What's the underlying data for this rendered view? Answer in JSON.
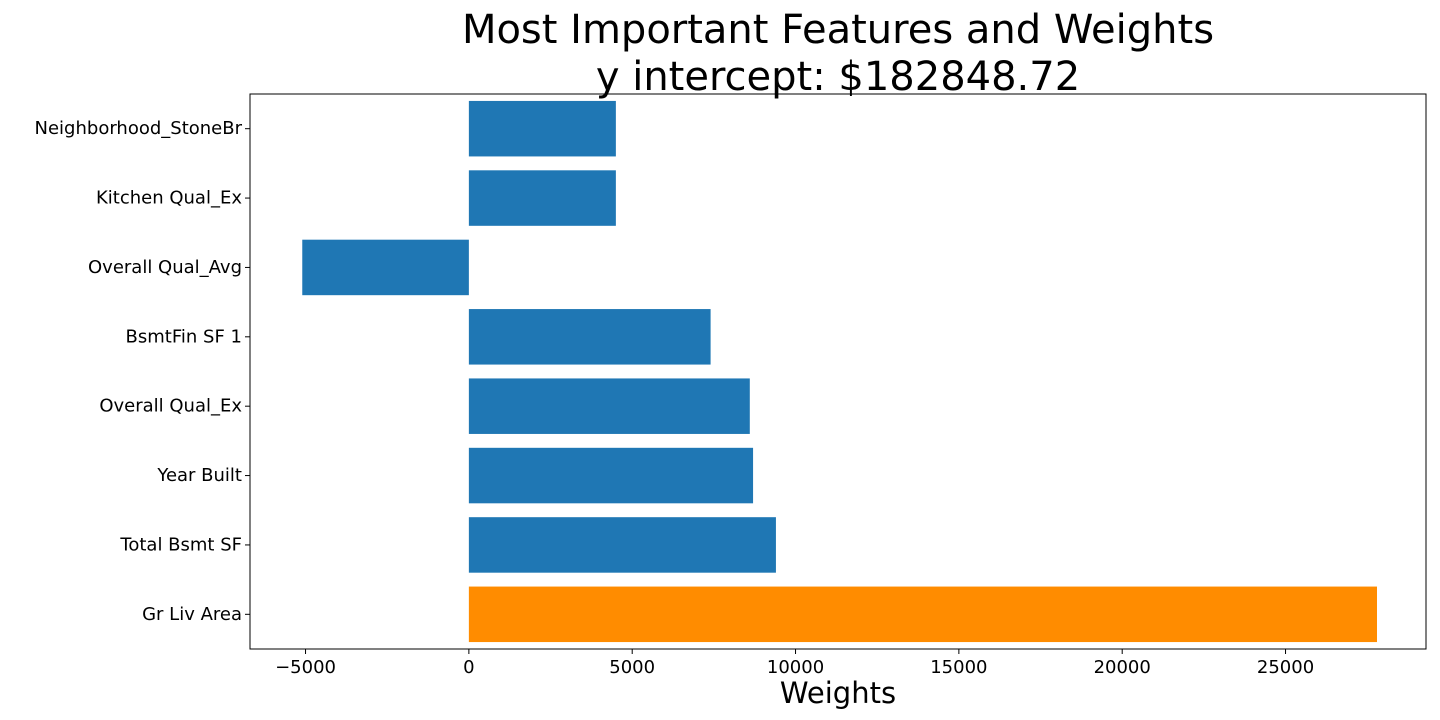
{
  "chart_data": {
    "type": "bar",
    "orientation": "horizontal",
    "title": "Most Important Features and Weights",
    "subtitle": "y intercept: $182848.72",
    "xlabel": "Weights",
    "ylabel": "",
    "categories": [
      "Gr Liv Area",
      "Total Bsmt SF",
      "Year Built",
      "Overall Qual_Ex",
      "BsmtFin SF 1",
      "Overall Qual_Avg",
      "Kitchen Qual_Ex",
      "Neighborhood_StoneBr"
    ],
    "values": [
      27800,
      9400,
      8700,
      8600,
      7400,
      -5100,
      4500,
      4500
    ],
    "colors": [
      "#ff8c00",
      "#1f77b4",
      "#1f77b4",
      "#1f77b4",
      "#1f77b4",
      "#1f77b4",
      "#1f77b4",
      "#1f77b4"
    ],
    "xlim": [
      -6700,
      29300
    ],
    "xticks": [
      -5000,
      0,
      5000,
      10000,
      15000,
      20000,
      25000
    ],
    "xtick_labels": [
      "−5000",
      "0",
      "5000",
      "10000",
      "15000",
      "20000",
      "25000"
    ],
    "grid": false,
    "legend": "none"
  }
}
